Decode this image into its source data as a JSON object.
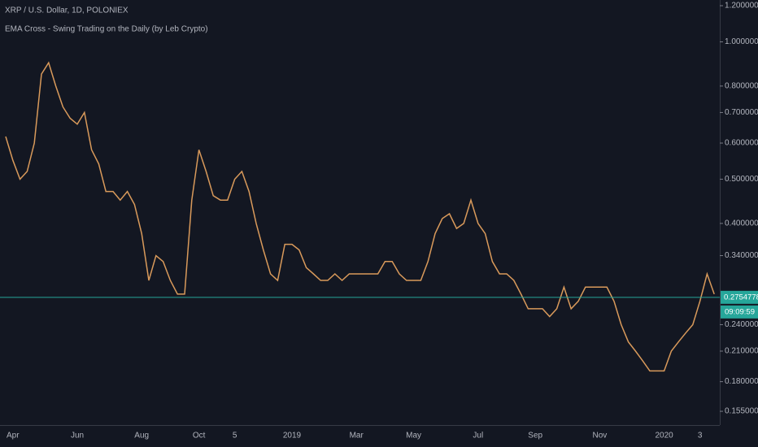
{
  "chart_data": {
    "type": "line",
    "title": "XRP / U.S. Dollar, 1D, POLONIEX",
    "subtitle": "EMA Cross - Swing Trading on the Daily (by Leb Crypto)",
    "log_scale": true,
    "color": "#d99a5b",
    "categories": [
      null,
      "Apr",
      null,
      null,
      null,
      null,
      null,
      null,
      null,
      null,
      "Jun",
      null,
      null,
      null,
      null,
      null,
      null,
      null,
      null,
      "Aug",
      null,
      null,
      null,
      null,
      null,
      null,
      null,
      "Oct",
      null,
      null,
      null,
      null,
      "5",
      null,
      null,
      null,
      null,
      null,
      null,
      null,
      "2019",
      null,
      null,
      null,
      null,
      null,
      null,
      null,
      null,
      "Mar",
      null,
      null,
      null,
      null,
      null,
      null,
      null,
      "May",
      null,
      null,
      null,
      null,
      null,
      null,
      null,
      null,
      "Jul",
      null,
      null,
      null,
      null,
      null,
      null,
      null,
      "Sep",
      null,
      null,
      null,
      null,
      null,
      null,
      null,
      null,
      "Nov",
      null,
      null,
      null,
      null,
      null,
      null,
      null,
      null,
      "2020",
      null,
      null,
      null,
      null,
      "3",
      null,
      null
    ],
    "values": [
      0.62,
      0.55,
      0.5,
      0.52,
      0.6,
      0.85,
      0.9,
      0.8,
      0.72,
      0.68,
      0.66,
      0.7,
      0.58,
      0.54,
      0.47,
      0.47,
      0.45,
      0.47,
      0.44,
      0.38,
      0.3,
      0.34,
      0.33,
      0.3,
      0.28,
      0.28,
      0.45,
      0.58,
      0.52,
      0.46,
      0.45,
      0.45,
      0.5,
      0.52,
      0.47,
      0.4,
      0.35,
      0.31,
      0.3,
      0.36,
      0.36,
      0.35,
      0.32,
      0.31,
      0.3,
      0.3,
      0.31,
      0.3,
      0.31,
      0.31,
      0.31,
      0.31,
      0.31,
      0.33,
      0.33,
      0.31,
      0.3,
      0.3,
      0.3,
      0.33,
      0.38,
      0.41,
      0.42,
      0.39,
      0.4,
      0.45,
      0.4,
      0.38,
      0.33,
      0.31,
      0.31,
      0.3,
      0.28,
      0.26,
      0.26,
      0.26,
      0.25,
      0.26,
      0.29,
      0.26,
      0.27,
      0.29,
      0.29,
      0.29,
      0.29,
      0.27,
      0.24,
      0.22,
      0.21,
      0.2,
      0.19,
      0.19,
      0.19,
      0.21,
      0.22,
      0.23,
      0.24,
      0.27,
      0.31,
      0.28
    ],
    "ylim": [
      0.1446,
      1.235
    ],
    "yticks": [
      {
        "value": 1.2,
        "label": "1.20000000"
      },
      {
        "value": 1.0,
        "label": "1.00000000"
      },
      {
        "value": 0.8,
        "label": "0.80000000"
      },
      {
        "value": 0.7,
        "label": "0.70000000"
      },
      {
        "value": 0.6,
        "label": "0.60000000"
      },
      {
        "value": 0.5,
        "label": "0.50000000"
      },
      {
        "value": 0.4,
        "label": "0.40000000"
      },
      {
        "value": 0.34,
        "label": "0.34000000"
      },
      {
        "value": 0.24,
        "label": "0.24000000"
      },
      {
        "value": 0.21,
        "label": "0.21000000"
      },
      {
        "value": 0.18,
        "label": "0.18000000"
      },
      {
        "value": 0.155,
        "label": "0.15500000"
      }
    ],
    "last_price": 0.27547785,
    "countdown": "09:09:59"
  }
}
